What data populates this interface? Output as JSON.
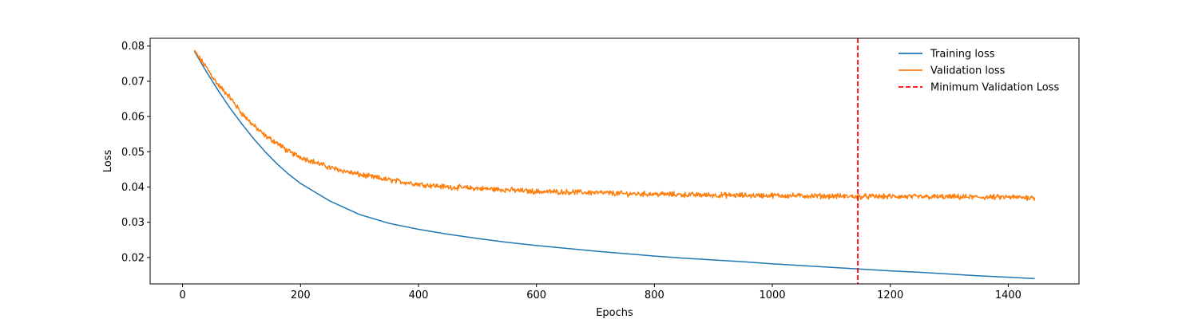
{
  "chart_data": {
    "type": "line",
    "title": "",
    "xlabel": "Epochs",
    "ylabel": "Loss",
    "xlim": [
      -55,
      1520
    ],
    "ylim": [
      0.0125,
      0.0822
    ],
    "x_ticks": [
      0,
      200,
      400,
      600,
      800,
      1000,
      1200,
      1400
    ],
    "y_ticks": [
      0.02,
      0.03,
      0.04,
      0.05,
      0.06,
      0.07,
      0.08
    ],
    "x_tick_labels": [
      "0",
      "200",
      "400",
      "600",
      "800",
      "1000",
      "1200",
      "1400"
    ],
    "y_tick_labels": [
      "0.02",
      "0.03",
      "0.04",
      "0.05",
      "0.06",
      "0.07",
      "0.08"
    ],
    "grid": false,
    "legend_position": "top-right",
    "series": [
      {
        "name": "Training loss",
        "color": "#1f77b4",
        "style": "solid",
        "x": [
          20,
          40,
          60,
          80,
          100,
          120,
          140,
          160,
          180,
          200,
          250,
          300,
          350,
          400,
          450,
          500,
          550,
          600,
          650,
          700,
          750,
          800,
          850,
          900,
          950,
          1000,
          1050,
          1100,
          1150,
          1200,
          1250,
          1300,
          1350,
          1400,
          1445
        ],
        "y": [
          0.0785,
          0.0728,
          0.0675,
          0.0625,
          0.058,
          0.0538,
          0.05,
          0.0466,
          0.0436,
          0.041,
          0.036,
          0.0322,
          0.0297,
          0.028,
          0.0266,
          0.0254,
          0.0243,
          0.0234,
          0.0226,
          0.0218,
          0.0211,
          0.0204,
          0.0198,
          0.0193,
          0.0188,
          0.0182,
          0.0177,
          0.0172,
          0.0167,
          0.0162,
          0.0158,
          0.0153,
          0.0148,
          0.0144,
          0.014
        ]
      },
      {
        "name": "Validation loss",
        "color": "#ff7f0e",
        "style": "solid",
        "x": [
          20,
          40,
          60,
          80,
          100,
          120,
          140,
          160,
          180,
          200,
          250,
          300,
          350,
          400,
          450,
          500,
          550,
          600,
          650,
          700,
          750,
          800,
          850,
          900,
          950,
          1000,
          1050,
          1100,
          1150,
          1200,
          1250,
          1300,
          1350,
          1400,
          1445
        ],
        "y": [
          0.0785,
          0.074,
          0.069,
          0.0655,
          0.061,
          0.0575,
          0.0545,
          0.0525,
          0.05,
          0.0485,
          0.0455,
          0.0435,
          0.042,
          0.0408,
          0.04,
          0.0396,
          0.0392,
          0.0387,
          0.0386,
          0.0384,
          0.0381,
          0.038,
          0.0378,
          0.0377,
          0.0376,
          0.0376,
          0.0375,
          0.0374,
          0.0373,
          0.0373,
          0.0372,
          0.0372,
          0.0371,
          0.0371,
          0.037
        ],
        "noise_amplitude": 0.0006
      }
    ],
    "vlines": [
      {
        "name": "Minimum Validation Loss",
        "x": 1145,
        "color": "#ff0000",
        "style": "dashed"
      }
    ]
  }
}
